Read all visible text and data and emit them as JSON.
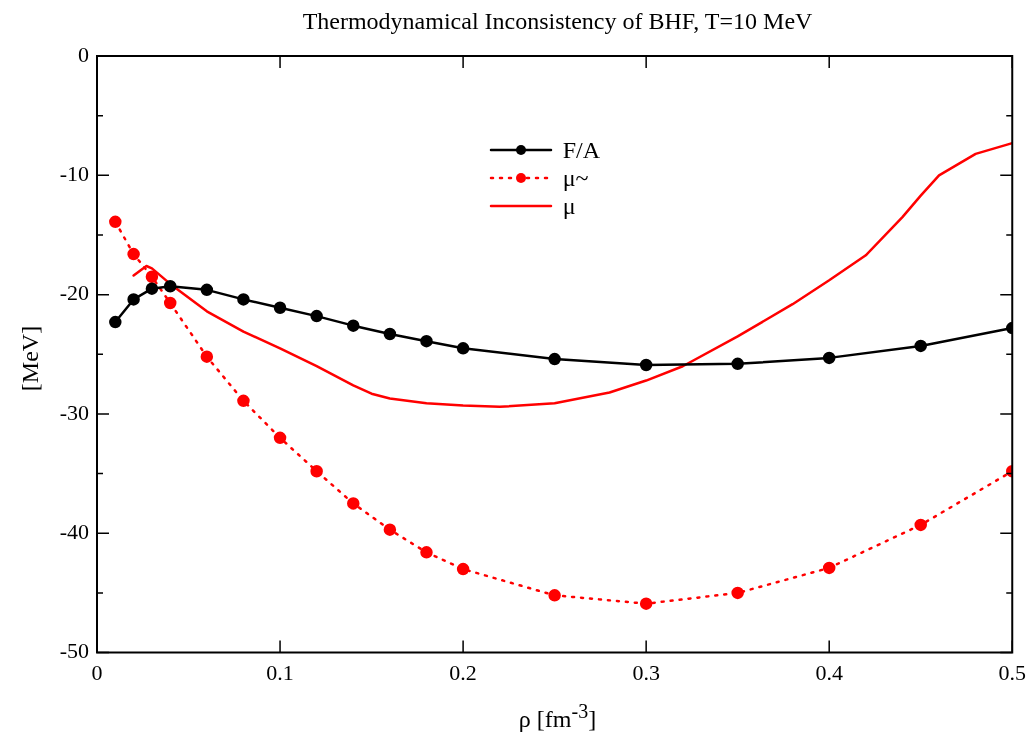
{
  "chart_data": {
    "type": "line",
    "title": "Thermodynamical Inconsistency of BHF, T=10 MeV",
    "xlabel": "ρ [fm$^{-3}$]",
    "ylabel": "[MeV]",
    "xlim": [
      0,
      0.5
    ],
    "xticks": [
      0,
      0.1,
      0.2,
      0.3,
      0.4,
      0.5
    ],
    "ylim": [
      -50,
      0
    ],
    "yticks": [
      -50,
      {
        "value": -45,
        "label": null
      },
      -40,
      {
        "value": -35,
        "label": null
      },
      -30,
      {
        "value": -25,
        "label": null
      },
      -20,
      {
        "value": -15,
        "label": null
      },
      -10,
      {
        "value": -5,
        "label": null
      },
      0
    ],
    "grid": false,
    "legend": "top",
    "series": [
      {
        "name": "F/A",
        "color": "#000000",
        "marker": "circle",
        "line_style": "solid",
        "x": [
          0.01,
          0.02,
          0.03,
          0.04,
          0.06,
          0.08,
          0.1,
          0.12,
          0.14,
          0.16,
          0.18,
          0.2,
          0.25,
          0.3,
          0.35,
          0.4,
          0.45,
          0.5
        ],
        "values": [
          -22.3,
          -20.4,
          -19.5,
          -19.3,
          -19.6,
          -20.4,
          -21.1,
          -21.8,
          -22.6,
          -23.3,
          -23.9,
          -24.5,
          -25.4,
          -25.9,
          -25.8,
          -25.3,
          -24.3,
          -22.8
        ]
      },
      {
        "name": "μ~",
        "color": "#ff0000",
        "marker": "circle",
        "line_style": "dotted",
        "x": [
          0.01,
          0.02,
          0.03,
          0.04,
          0.06,
          0.08,
          0.1,
          0.12,
          0.14,
          0.16,
          0.18,
          0.2,
          0.25,
          0.3,
          0.35,
          0.4,
          0.45,
          0.5
        ],
        "values": [
          -13.9,
          -16.6,
          -18.5,
          -20.7,
          -25.2,
          -28.9,
          -32.0,
          -34.8,
          -37.5,
          -39.7,
          -41.6,
          -43.0,
          -45.2,
          -45.9,
          -45.0,
          -42.9,
          -39.3,
          -34.8
        ]
      },
      {
        "name": "μ",
        "color": "#ff0000",
        "marker": "none",
        "line_style": "solid",
        "x": [
          0.02,
          0.027,
          0.03,
          0.04,
          0.06,
          0.08,
          0.1,
          0.12,
          0.14,
          0.15,
          0.16,
          0.18,
          0.2,
          0.22,
          0.25,
          0.28,
          0.3,
          0.32,
          0.35,
          0.38,
          0.4,
          0.42,
          0.44,
          0.45,
          0.46,
          0.48,
          0.5
        ],
        "values": [
          -18.4,
          -17.6,
          -17.8,
          -19.1,
          -21.4,
          -23.1,
          -24.5,
          -26.0,
          -27.6,
          -28.3,
          -28.7,
          -29.1,
          -29.3,
          -29.4,
          -29.1,
          -28.2,
          -27.2,
          -26.0,
          -23.5,
          -20.8,
          -18.8,
          -16.7,
          -13.5,
          -11.7,
          -10.0,
          -8.2,
          -7.3
        ]
      }
    ]
  }
}
